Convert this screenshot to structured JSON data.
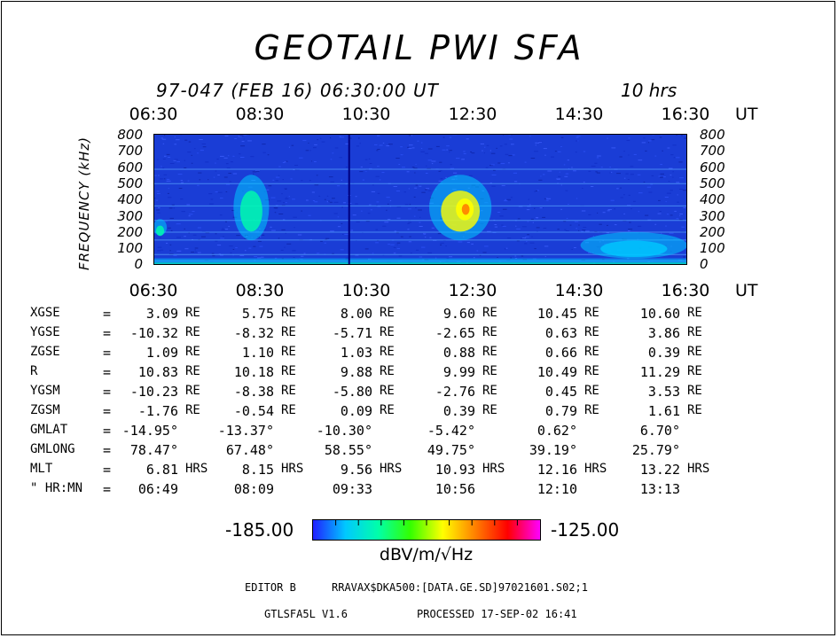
{
  "title": "GEOTAIL PWI SFA",
  "subtitle": "97-047 (FEB 16) 06:30:00 UT",
  "duration": "10 hrs",
  "time_axis": {
    "labels": [
      "06:30",
      "08:30",
      "10:30",
      "12:30",
      "14:30",
      "16:30"
    ],
    "unit": "UT"
  },
  "freq_axis": {
    "label": "FREQUENCY (kHz)",
    "ticks": [
      "800",
      "700",
      "600",
      "500",
      "400",
      "300",
      "200",
      "100",
      "0"
    ]
  },
  "chart_data": {
    "type": "heatmap",
    "title": "GEOTAIL PWI SFA",
    "xlabel": "UT",
    "ylabel": "FREQUENCY (kHz)",
    "x_ticks": [
      "06:30",
      "08:30",
      "10:30",
      "12:30",
      "14:30",
      "16:30"
    ],
    "ylim": [
      0,
      800
    ],
    "colorbar": {
      "min": -185.0,
      "max": -125.0,
      "units": "dBV/m/√Hz",
      "colors": [
        "#2020ff",
        "#00c8ff",
        "#00ffaa",
        "#33ff00",
        "#ffff00",
        "#ff8000",
        "#ff0000",
        "#ff00ff"
      ]
    },
    "features": [
      {
        "time_start": "06:30",
        "time_end": "06:45",
        "freq_low": 180,
        "freq_high": 280,
        "level": -170
      },
      {
        "time_start": "08:00",
        "time_end": "08:40",
        "freq_low": 150,
        "freq_high": 550,
        "level": -165
      },
      {
        "time_start": "11:40",
        "time_end": "12:50",
        "freq_low": 150,
        "freq_high": 550,
        "level": -155
      },
      {
        "time_start": "14:30",
        "time_end": "16:30",
        "freq_low": 40,
        "freq_high": 200,
        "level": -175
      }
    ]
  },
  "ephemeris": [
    {
      "name": "XGSE",
      "values": [
        "3.09",
        "5.75",
        "8.00",
        "9.60",
        "10.45",
        "10.60"
      ],
      "unit": "RE"
    },
    {
      "name": "YGSE",
      "values": [
        "-10.32",
        "-8.32",
        "-5.71",
        "-2.65",
        "0.63",
        "3.86"
      ],
      "unit": "RE"
    },
    {
      "name": "ZGSE",
      "values": [
        "1.09",
        "1.10",
        "1.03",
        "0.88",
        "0.66",
        "0.39"
      ],
      "unit": "RE"
    },
    {
      "name": "R",
      "values": [
        "10.83",
        "10.18",
        "9.88",
        "9.99",
        "10.49",
        "11.29"
      ],
      "unit": "RE"
    },
    {
      "name": "YGSM",
      "values": [
        "-10.23",
        "-8.38",
        "-5.80",
        "-2.76",
        "0.45",
        "3.53"
      ],
      "unit": "RE"
    },
    {
      "name": "ZGSM",
      "values": [
        "-1.76",
        "-0.54",
        "0.09",
        "0.39",
        "0.79",
        "1.61"
      ],
      "unit": "RE"
    },
    {
      "name": "GMLAT",
      "values": [
        "-14.95°",
        "-13.37°",
        "-10.30°",
        "-5.42°",
        "0.62°",
        "6.70°"
      ],
      "unit": ""
    },
    {
      "name": "GMLONG",
      "values": [
        "78.47°",
        "67.48°",
        "58.55°",
        "49.75°",
        "39.19°",
        "25.79°"
      ],
      "unit": ""
    },
    {
      "name": "MLT",
      "values": [
        "6.81",
        "8.15",
        "9.56",
        "10.93",
        "12.16",
        "13.22"
      ],
      "unit": "HRS"
    },
    {
      "name": "\" HR:MN",
      "values": [
        "06:49",
        "08:09",
        "09:33",
        "10:56",
        "12:10",
        "13:13"
      ],
      "unit": ""
    }
  ],
  "colorbar_labels": {
    "min": "-185.00",
    "max": "-125.00",
    "units": "dBV/m/√Hz"
  },
  "footer": {
    "editor": "EDITOR B",
    "path": "RRAVAX$DKA500:[DATA.GE.SD]97021601.S02;1",
    "program": "GTLSFA5L V1.6",
    "processed": "PROCESSED 17-SEP-02  16:41"
  }
}
